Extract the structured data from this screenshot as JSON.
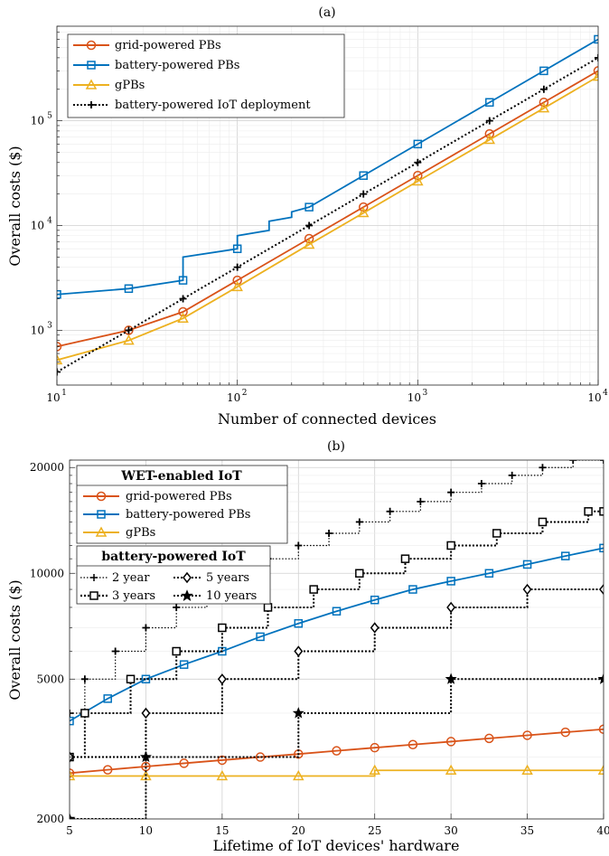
{
  "colors": {
    "grid": "#0072BD",
    "battery": "#D95319",
    "gpb": "#EDB120",
    "black": "#000000",
    "red": "#D95319",
    "blue": "#0072BD",
    "yellow": "#EDB120"
  },
  "chart_data": [
    {
      "type": "line",
      "title": "(a)",
      "xlabel": "Number of connected devices",
      "ylabel": "Overall costs ($)",
      "xscale": "log",
      "yscale": "log",
      "xlim": [
        10,
        10000
      ],
      "ylim": [
        300,
        800000
      ],
      "grid": true,
      "legend_position": "top-left",
      "xticks": [
        10,
        100,
        1000,
        10000
      ],
      "xtick_labels": [
        {
          "base": "10",
          "exp": "1"
        },
        {
          "base": "10",
          "exp": "2"
        },
        {
          "base": "10",
          "exp": "3"
        },
        {
          "base": "10",
          "exp": "4"
        }
      ],
      "yticks": [
        1000,
        10000,
        100000
      ],
      "ytick_labels": [
        {
          "base": "10",
          "exp": "3"
        },
        {
          "base": "10",
          "exp": "4"
        },
        {
          "base": "10",
          "exp": "5"
        }
      ],
      "series": [
        {
          "name": "grid-powered PBs",
          "color": "red",
          "marker": "circle",
          "style": "solid",
          "x": [
            10,
            25,
            50,
            100,
            250,
            500,
            1000,
            2500,
            5000,
            10000
          ],
          "y": [
            700,
            1000,
            1500,
            3000,
            7500,
            15000,
            30000,
            75000,
            150000,
            300000
          ]
        },
        {
          "name": "battery-powered PBs",
          "color": "blue",
          "marker": "square",
          "style": "solid",
          "x": [
            10,
            25,
            50,
            100,
            250,
            500,
            1000,
            2500,
            5000,
            10000
          ],
          "y": [
            2200,
            2500,
            3000,
            6000,
            15000,
            30000,
            60000,
            150000,
            300000,
            600000
          ],
          "steps": [
            {
              "x": 50,
              "from": 3000,
              "to": 5000
            },
            {
              "x": 100,
              "from": 6000,
              "to": 8000
            },
            {
              "x": 150,
              "from": 9000,
              "to": 11000
            },
            {
              "x": 200,
              "from": 12000,
              "to": 13500
            }
          ]
        },
        {
          "name": "gPBs",
          "color": "yellow",
          "marker": "triangle",
          "style": "solid",
          "x": [
            10,
            25,
            50,
            100,
            250,
            500,
            1000,
            2500,
            5000,
            10000
          ],
          "y": [
            520,
            800,
            1300,
            2600,
            6600,
            13200,
            26500,
            66000,
            132000,
            265000
          ]
        },
        {
          "name": "battery-powered IoT deployment",
          "color": "black",
          "marker": "plus",
          "style": "dotted",
          "x": [
            10,
            25,
            50,
            100,
            250,
            500,
            1000,
            2500,
            5000,
            10000
          ],
          "y": [
            400,
            1000,
            2000,
            4000,
            10000,
            20000,
            40000,
            100000,
            200000,
            400000
          ]
        }
      ]
    },
    {
      "type": "line",
      "title": "(b)",
      "xlabel": "Lifetime of IoT devices' hardware",
      "ylabel": "Overall costs ($)",
      "xscale": "linear",
      "yscale": "log",
      "xlim": [
        5,
        40
      ],
      "ylim": [
        2000,
        21000
      ],
      "grid": true,
      "legend_position": "top-left",
      "xticks": [
        5,
        10,
        15,
        20,
        25,
        30,
        35,
        40
      ],
      "yticks": [
        2000,
        5000,
        10000,
        20000
      ],
      "ytick_labels": [
        "2000",
        "5000",
        "10000",
        "20000"
      ],
      "legend_groups": [
        {
          "title": "WET-enabled IoT",
          "entries": [
            "grid-powered PBs",
            "battery-powered PBs",
            "gPBs"
          ]
        },
        {
          "title": "battery-powered IoT",
          "entries": [
            "2 year",
            "5 years",
            "3 years",
            "10 years"
          ]
        }
      ],
      "series": [
        {
          "name": "grid-powered PBs",
          "color": "red",
          "marker": "circle",
          "style": "solid",
          "x": [
            5,
            7.5,
            10,
            12.5,
            15,
            17.5,
            20,
            22.5,
            25,
            27.5,
            30,
            32.5,
            35,
            37.5,
            40
          ],
          "y": [
            2700,
            2760,
            2820,
            2880,
            2940,
            3000,
            3060,
            3125,
            3190,
            3255,
            3320,
            3390,
            3460,
            3530,
            3600
          ]
        },
        {
          "name": "battery-powered PBs",
          "color": "blue",
          "marker": "square",
          "style": "solid",
          "x": [
            5,
            7.5,
            10,
            12.5,
            15,
            17.5,
            20,
            22.5,
            25,
            27.5,
            30,
            32.5,
            35,
            37.5,
            40
          ],
          "y": [
            3800,
            4400,
            5000,
            5500,
            6000,
            6600,
            7200,
            7800,
            8400,
            9000,
            9500,
            10000,
            10600,
            11200,
            11800
          ]
        },
        {
          "name": "gPBs",
          "color": "yellow",
          "marker": "triangle",
          "style": "solid",
          "x": [
            5,
            10,
            15,
            20,
            25,
            30,
            35,
            40
          ],
          "y": [
            2650,
            2650,
            2650,
            2650,
            2750,
            2750,
            2750,
            2750
          ]
        },
        {
          "name": "2 year",
          "color": "black",
          "marker": "plus",
          "style": "dotted-step",
          "x": [
            5,
            6,
            8,
            10,
            12,
            14,
            16,
            18,
            20,
            22,
            24,
            26,
            28,
            30,
            32,
            34,
            36,
            38,
            40
          ],
          "y": [
            4000,
            5000,
            6000,
            7000,
            8000,
            9000,
            10000,
            11000,
            12000,
            13000,
            14000,
            15000,
            16000,
            17000,
            18000,
            19000,
            20000,
            21000,
            21000
          ]
        },
        {
          "name": "3 years",
          "color": "black",
          "marker": "square",
          "style": "dotted-step",
          "x": [
            5,
            6,
            9,
            12,
            15,
            18,
            21,
            24,
            27,
            30,
            33,
            36,
            39,
            40
          ],
          "y": [
            3000,
            4000,
            5000,
            6000,
            7000,
            8000,
            9000,
            10000,
            11000,
            12000,
            13000,
            14000,
            15000,
            15000
          ]
        },
        {
          "name": "5 years",
          "color": "black",
          "marker": "diamond",
          "style": "dotted-step",
          "x": [
            5,
            10,
            15,
            20,
            25,
            30,
            35,
            40
          ],
          "y": [
            3000,
            4000,
            5000,
            6000,
            7000,
            8000,
            9000,
            9000
          ]
        },
        {
          "name": "10 years",
          "color": "black",
          "marker": "star",
          "style": "dotted-step",
          "x": [
            5,
            10,
            20,
            30,
            40
          ],
          "y": [
            2000,
            3000,
            4000,
            5000,
            5000
          ]
        }
      ]
    }
  ]
}
